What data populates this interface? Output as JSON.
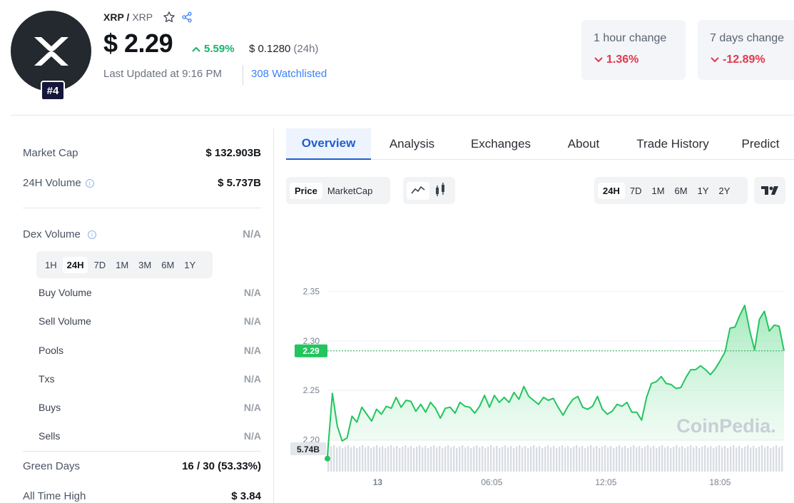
{
  "coin": {
    "name": "XRP /",
    "symbol": "XRP",
    "rank": "#4",
    "price": "$ 2.29",
    "change_24h_pct": "5.59%",
    "change_24h_abs": "$ 0.1280",
    "change_24h_period": "(24h)",
    "last_updated": "Last Updated at 9:16 PM",
    "watchlisted": "308 Watchlisted"
  },
  "stats_cards": [
    {
      "label": "1 hour change",
      "value": "1.36%"
    },
    {
      "label": "7 days change",
      "value": "-12.89%"
    }
  ],
  "metrics": {
    "market_cap": {
      "label": "Market Cap",
      "value": "$ 132.903B"
    },
    "volume_24h": {
      "label": "24H Volume",
      "value": "$ 5.737B"
    },
    "dex_volume": {
      "label": "Dex Volume",
      "value": "N/A"
    },
    "dex_tabs": [
      "1H",
      "24H",
      "7D",
      "1M",
      "3M",
      "6M",
      "1Y"
    ],
    "dex_active": "24H",
    "dex_rows": [
      {
        "label": "Buy Volume",
        "value": "N/A"
      },
      {
        "label": "Sell Volume",
        "value": "N/A"
      },
      {
        "label": "Pools",
        "value": "N/A"
      },
      {
        "label": "Txs",
        "value": "N/A"
      },
      {
        "label": "Buys",
        "value": "N/A"
      },
      {
        "label": "Sells",
        "value": "N/A"
      }
    ],
    "green_days": {
      "label": "Green Days",
      "value": "16 / 30 (53.33%)"
    },
    "all_time_high": {
      "label": "All Time High",
      "value": "$ 3.84"
    }
  },
  "tabs": [
    "Overview",
    "Analysis",
    "Exchanges",
    "About",
    "Trade History",
    "Predict"
  ],
  "active_tab": "Overview",
  "chart_controls": {
    "type_options": [
      "Price",
      "MarketCap"
    ],
    "type_active": "Price",
    "ranges": [
      "24H",
      "7D",
      "1M",
      "6M",
      "1Y",
      "2Y"
    ],
    "range_active": "24H",
    "icons": [
      "line-chart-icon",
      "candlestick-icon",
      "tradingview-icon"
    ]
  },
  "chart_data": {
    "type": "area",
    "x_tick_labels": [
      "13",
      "06:05",
      "12:05",
      "18:05"
    ],
    "y_tick_labels": [
      "2.35",
      "2.30",
      "2.25",
      "2.20"
    ],
    "ylim": [
      2.175,
      2.37
    ],
    "current_price_label": "2.29",
    "current_price": 2.29,
    "volume_label": "5.74B",
    "watermark": "CoinPedia.",
    "colors": {
      "line": "#22c55e",
      "fill": "#bbf0cd",
      "grid": "#eef0f3",
      "price_tag": "#22c55e",
      "volume": "#d9dde3"
    },
    "values": [
      2.184,
      2.247,
      2.214,
      2.199,
      2.202,
      2.224,
      2.218,
      2.233,
      2.226,
      2.219,
      2.231,
      2.226,
      2.234,
      2.232,
      2.243,
      2.233,
      2.24,
      2.239,
      2.229,
      2.236,
      2.228,
      2.238,
      2.232,
      2.222,
      2.232,
      2.233,
      2.227,
      2.238,
      2.234,
      2.233,
      2.227,
      2.234,
      2.245,
      2.233,
      2.245,
      2.238,
      2.243,
      2.238,
      2.248,
      2.241,
      2.254,
      2.244,
      2.24,
      2.236,
      2.243,
      2.24,
      2.242,
      2.233,
      2.225,
      2.234,
      2.241,
      2.244,
      2.233,
      2.231,
      2.234,
      2.244,
      2.231,
      2.226,
      2.229,
      2.236,
      2.234,
      2.238,
      2.228,
      2.228,
      2.22,
      2.243,
      2.257,
      2.259,
      2.264,
      2.257,
      2.256,
      2.252,
      2.253,
      2.263,
      2.271,
      2.271,
      2.275,
      2.271,
      2.266,
      2.272,
      2.28,
      2.289,
      2.313,
      2.314,
      2.326,
      2.336,
      2.311,
      2.291,
      2.322,
      2.33,
      2.31,
      2.316,
      2.315,
      2.29
    ]
  }
}
